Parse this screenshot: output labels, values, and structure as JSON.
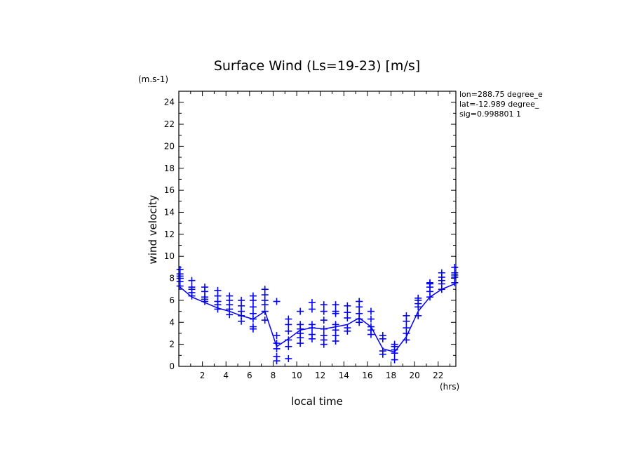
{
  "chart_data": {
    "type": "line",
    "title": "Surface Wind  (Ls=19-23) [m/s]",
    "ylabel": "wind velocity",
    "yunit": "(m.s-1)",
    "xlabel": "local time",
    "xunit": "(hrs)",
    "xlim": [
      0,
      23.5
    ],
    "ylim": [
      0,
      25
    ],
    "xticks": [
      2,
      4,
      6,
      8,
      10,
      12,
      14,
      16,
      18,
      20,
      22
    ],
    "yticks": [
      0,
      2,
      4,
      6,
      8,
      10,
      12,
      14,
      16,
      18,
      20,
      22,
      24
    ],
    "grid": false,
    "series_color": "#0000ff",
    "info_lines": [
      "lon=288.75 degree_e",
      "lat=-12.989 degree_",
      "sig=0.998801 1"
    ],
    "mean_line": {
      "x": [
        0.1,
        1.1,
        2.2,
        3.3,
        4.3,
        5.3,
        6.3,
        7.3,
        8.3,
        9.3,
        10.3,
        11.3,
        12.3,
        13.3,
        14.3,
        15.3,
        16.3,
        17.3,
        18.3,
        19.3,
        20.3,
        21.3,
        22.3,
        23.4
      ],
      "y": [
        7.2,
        6.3,
        5.8,
        5.3,
        5.0,
        4.6,
        4.3,
        5.0,
        1.8,
        2.5,
        3.3,
        3.5,
        3.4,
        3.6,
        3.8,
        4.4,
        3.6,
        1.6,
        1.3,
        2.7,
        5.0,
        6.3,
        7.0,
        7.5
      ]
    },
    "scatter": [
      {
        "x": 0.1,
        "y": [
          7.3,
          7.7,
          8.0,
          8.2,
          8.4,
          8.8
        ]
      },
      {
        "x": 1.1,
        "y": [
          6.4,
          6.7,
          7.0,
          7.2,
          7.8
        ]
      },
      {
        "x": 2.2,
        "y": [
          5.9,
          6.1,
          6.3,
          6.8,
          7.2
        ]
      },
      {
        "x": 3.3,
        "y": [
          5.2,
          5.6,
          5.9,
          6.4,
          6.9
        ]
      },
      {
        "x": 4.3,
        "y": [
          4.7,
          5.2,
          5.6,
          6.0,
          6.4
        ]
      },
      {
        "x": 5.3,
        "y": [
          4.1,
          4.6,
          5.0,
          5.5,
          6.0
        ]
      },
      {
        "x": 6.3,
        "y": [
          3.4,
          3.6,
          4.3,
          4.8,
          5.4,
          6.0,
          6.4
        ]
      },
      {
        "x": 7.3,
        "y": [
          4.2,
          5.0,
          5.6,
          6.0,
          6.5,
          7.0
        ]
      },
      {
        "x": 8.3,
        "y": [
          0.5,
          0.9,
          1.6,
          2.1,
          2.8,
          5.9
        ]
      },
      {
        "x": 9.3,
        "y": [
          0.7,
          1.8,
          2.4,
          3.2,
          3.8,
          4.3
        ]
      },
      {
        "x": 10.3,
        "y": [
          2.1,
          2.6,
          3.0,
          3.4,
          3.8,
          5.0
        ]
      },
      {
        "x": 11.3,
        "y": [
          2.5,
          2.9,
          3.5,
          3.8,
          5.2,
          5.8
        ]
      },
      {
        "x": 12.3,
        "y": [
          2.0,
          2.4,
          2.8,
          3.4,
          4.2,
          5.0,
          5.6
        ]
      },
      {
        "x": 13.3,
        "y": [
          2.3,
          2.8,
          3.3,
          3.8,
          4.8,
          5.0,
          5.6
        ]
      },
      {
        "x": 14.3,
        "y": [
          3.2,
          3.5,
          4.4,
          4.9,
          5.5
        ]
      },
      {
        "x": 15.3,
        "y": [
          4.0,
          4.3,
          4.8,
          5.4,
          5.9
        ]
      },
      {
        "x": 16.3,
        "y": [
          2.9,
          3.3,
          3.6,
          4.3,
          5.0
        ]
      },
      {
        "x": 17.3,
        "y": [
          1.1,
          1.4,
          2.5,
          2.8
        ]
      },
      {
        "x": 18.3,
        "y": [
          0.6,
          1.2,
          1.5,
          1.8,
          2.0
        ]
      },
      {
        "x": 19.3,
        "y": [
          2.4,
          3.0,
          3.5,
          4.1,
          4.6
        ]
      },
      {
        "x": 20.3,
        "y": [
          4.6,
          5.4,
          5.7,
          6.0,
          6.2
        ]
      },
      {
        "x": 21.3,
        "y": [
          6.3,
          6.8,
          7.2,
          7.5,
          7.6
        ]
      },
      {
        "x": 22.3,
        "y": [
          7.0,
          7.5,
          7.8,
          8.1,
          8.5
        ]
      },
      {
        "x": 23.4,
        "y": [
          7.6,
          8.1,
          8.3,
          8.5,
          9.0
        ]
      }
    ]
  }
}
